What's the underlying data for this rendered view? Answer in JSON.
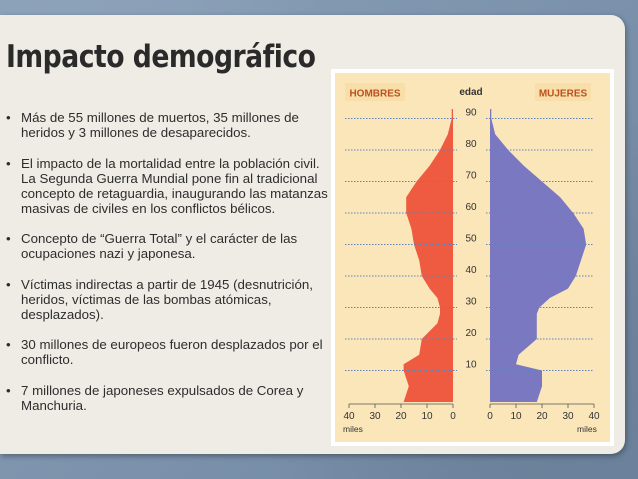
{
  "slide": {
    "title": "Impacto demográfico",
    "bullets": [
      {
        "text": "Más de 55 millones de muertos, 35 millones de heridos y 3 millones de desaparecidos."
      },
      {
        "text": "El impacto de la mortalidad entre la población civil. La Segunda Guerra Mundial pone fin al tradicional concepto de retaguardia, inaugurando las matanzas masivas de civiles en los conflictos bélicos."
      },
      {
        "text": "Concepto de “Guerra Total” y el carácter de las ocupaciones nazi y japonesa."
      },
      {
        "text": "Víctimas indirectas a partir de 1945 (desnutrición, heridos, víctimas de las bombas atómicas, desplazados)."
      },
      {
        "text": "30 millones de europeos fueron desplazados por el conflicto."
      },
      {
        "text": "7 millones de japoneses expulsados de Corea y Manchuria."
      }
    ],
    "bullet_glyph": "•"
  },
  "colors": {
    "men": "#ef5b41",
    "women": "#7b78c2",
    "label_bg": "#f8dfaa",
    "label_text": "#bd4f1f",
    "panel_bg": "#fbe6b9",
    "gridline": "#5f82bf",
    "axis_text": "#333333"
  },
  "chart_data": {
    "type": "population_pyramid",
    "left_label": "HOMBRES",
    "right_label": "MUJERES",
    "center_title": "edad",
    "age_ticks": [
      "10",
      "20",
      "30",
      "40",
      "50",
      "60",
      "70",
      "80",
      "90"
    ],
    "x_ticks_left": [
      "40",
      "30",
      "20",
      "10",
      "0"
    ],
    "x_ticks_right": [
      "0",
      "10",
      "20",
      "30",
      "40"
    ],
    "x_unit": "miles",
    "x_range": [
      0,
      40
    ],
    "age_range": [
      0,
      95
    ],
    "age_points": [
      0,
      5,
      10,
      12,
      15,
      20,
      25,
      28,
      30,
      33,
      36,
      40,
      45,
      50,
      55,
      60,
      65,
      70,
      75,
      80,
      85,
      90,
      93
    ],
    "men": [
      19,
      17,
      19,
      19,
      13,
      12,
      6,
      5,
      5,
      6,
      9,
      12,
      13,
      15,
      16,
      18,
      18,
      14,
      9,
      5,
      2,
      0.5,
      0.5
    ],
    "women": [
      18,
      20,
      20,
      10,
      11,
      18,
      18,
      18,
      19,
      23,
      30,
      33,
      35,
      37,
      36,
      32,
      27,
      20,
      13,
      7,
      2,
      0.5,
      0.5
    ]
  }
}
